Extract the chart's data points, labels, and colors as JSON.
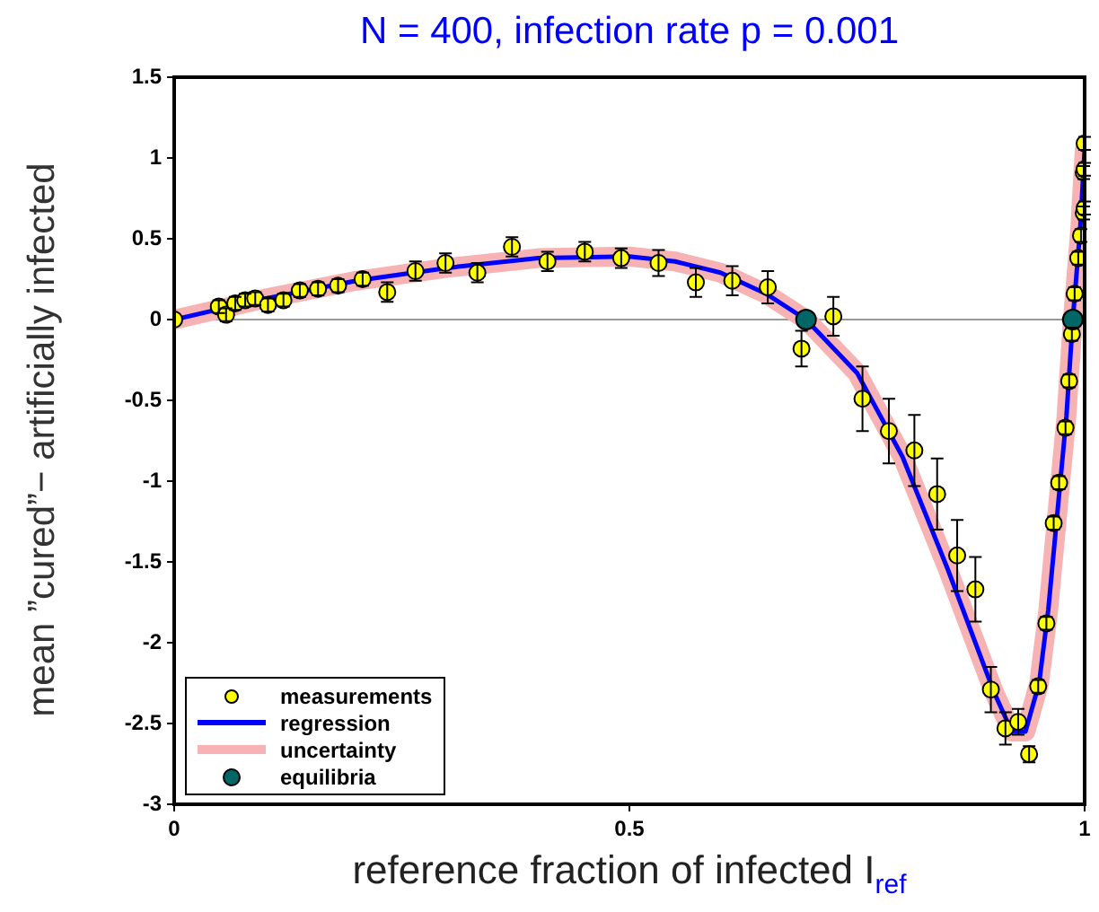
{
  "chart_data": {
    "type": "scatter",
    "title": "N = 400, infection rate p = 0.001",
    "xlabel": "reference fraction of infected I$_{ref}$",
    "ylabel": "mean ”cured”− artificially infected",
    "xlim": [
      0,
      1
    ],
    "xticks": [
      0,
      0.5,
      1
    ],
    "ylim": [
      -3,
      1.5
    ],
    "yticks": [
      -3,
      -2.5,
      -2,
      -1.5,
      -1,
      -0.5,
      0,
      0.5,
      1,
      1.5
    ],
    "grid": false,
    "legend": "bottom left",
    "marker": "circle",
    "ref_lines": [
      {
        "axis": "y",
        "value": 0,
        "color": "#999999"
      }
    ],
    "series": [
      {
        "name": "uncertainty",
        "type": "line",
        "color": "#f7b3b3",
        "line_style": "solid",
        "marker": "none",
        "x": [
          0,
          0.1,
          0.2,
          0.3,
          0.4,
          0.5,
          0.55,
          0.6,
          0.65,
          0.694,
          0.75,
          0.8,
          0.85,
          0.9,
          0.92,
          0.935,
          0.95,
          0.96,
          0.97,
          0.98,
          0.987,
          0.995,
          1
        ],
        "values": [
          0,
          0.13,
          0.24,
          0.32,
          0.38,
          0.39,
          0.36,
          0.29,
          0.16,
          0,
          -0.33,
          -0.85,
          -1.55,
          -2.3,
          -2.55,
          -2.55,
          -2.25,
          -1.8,
          -1.2,
          -0.6,
          0,
          0.55,
          1.05
        ]
      },
      {
        "name": "regression",
        "type": "line",
        "color": "#0000ff",
        "line_style": "solid",
        "marker": "none",
        "x": [
          0,
          0.1,
          0.2,
          0.3,
          0.4,
          0.5,
          0.55,
          0.6,
          0.65,
          0.694,
          0.75,
          0.8,
          0.85,
          0.9,
          0.92,
          0.935,
          0.95,
          0.96,
          0.97,
          0.98,
          0.987,
          0.995,
          1
        ],
        "values": [
          0,
          0.13,
          0.24,
          0.32,
          0.38,
          0.39,
          0.36,
          0.29,
          0.16,
          0,
          -0.33,
          -0.85,
          -1.55,
          -2.3,
          -2.55,
          -2.55,
          -2.25,
          -1.8,
          -1.2,
          -0.6,
          0,
          0.55,
          1.05
        ]
      },
      {
        "name": "measurements",
        "color": "#ffff00",
        "x": [
          0,
          0.049,
          0.057,
          0.067,
          0.078,
          0.089,
          0.103,
          0.12,
          0.138,
          0.158,
          0.18,
          0.207,
          0.234,
          0.265,
          0.298,
          0.333,
          0.371,
          0.41,
          0.451,
          0.491,
          0.532,
          0.573,
          0.613,
          0.652,
          0.689,
          0.724,
          0.756,
          0.785,
          0.813,
          0.838,
          0.86,
          0.88,
          0.897,
          0.913,
          0.927,
          0.939,
          0.949,
          0.958,
          0.966,
          0.972,
          0.979,
          0.983,
          0.986,
          0.989,
          0.993,
          0.996,
          0.999,
          1,
          0.999,
          1,
          1
        ],
        "values": [
          0,
          0.08,
          0.03,
          0.1,
          0.12,
          0.13,
          0.09,
          0.12,
          0.18,
          0.19,
          0.21,
          0.25,
          0.17,
          0.3,
          0.35,
          0.29,
          0.45,
          0.36,
          0.42,
          0.38,
          0.35,
          0.23,
          0.24,
          0.2,
          -0.18,
          0.02,
          -0.49,
          -0.69,
          -0.81,
          -1.08,
          -1.46,
          -1.67,
          -2.29,
          -2.53,
          -2.49,
          -2.69,
          -2.27,
          -1.88,
          -1.26,
          -1.01,
          -0.67,
          -0.38,
          -0.09,
          0.16,
          0.38,
          0.52,
          0.66,
          0.69,
          0.91,
          0.93,
          1.09
        ],
        "errors": [
          null,
          0.04,
          0.04,
          0.04,
          0.04,
          0.04,
          0.04,
          0.04,
          0.04,
          0.04,
          0.04,
          0.04,
          0.06,
          0.06,
          0.06,
          0.06,
          0.06,
          0.06,
          0.06,
          0.06,
          0.08,
          0.09,
          0.09,
          0.1,
          0.11,
          0.12,
          0.2,
          0.2,
          0.22,
          0.22,
          0.22,
          0.2,
          0.14,
          0.1,
          0.08,
          0.05,
          0.04,
          0.04,
          0.04,
          0.04,
          0.04,
          0.04,
          0.04,
          0.04,
          0.04,
          0.04,
          0.04,
          0.04,
          0.04,
          0.04,
          0.04
        ]
      },
      {
        "name": "equilibria",
        "color": "#006666",
        "x": [
          0.694,
          0.987
        ],
        "values": [
          0,
          0
        ]
      }
    ]
  }
}
